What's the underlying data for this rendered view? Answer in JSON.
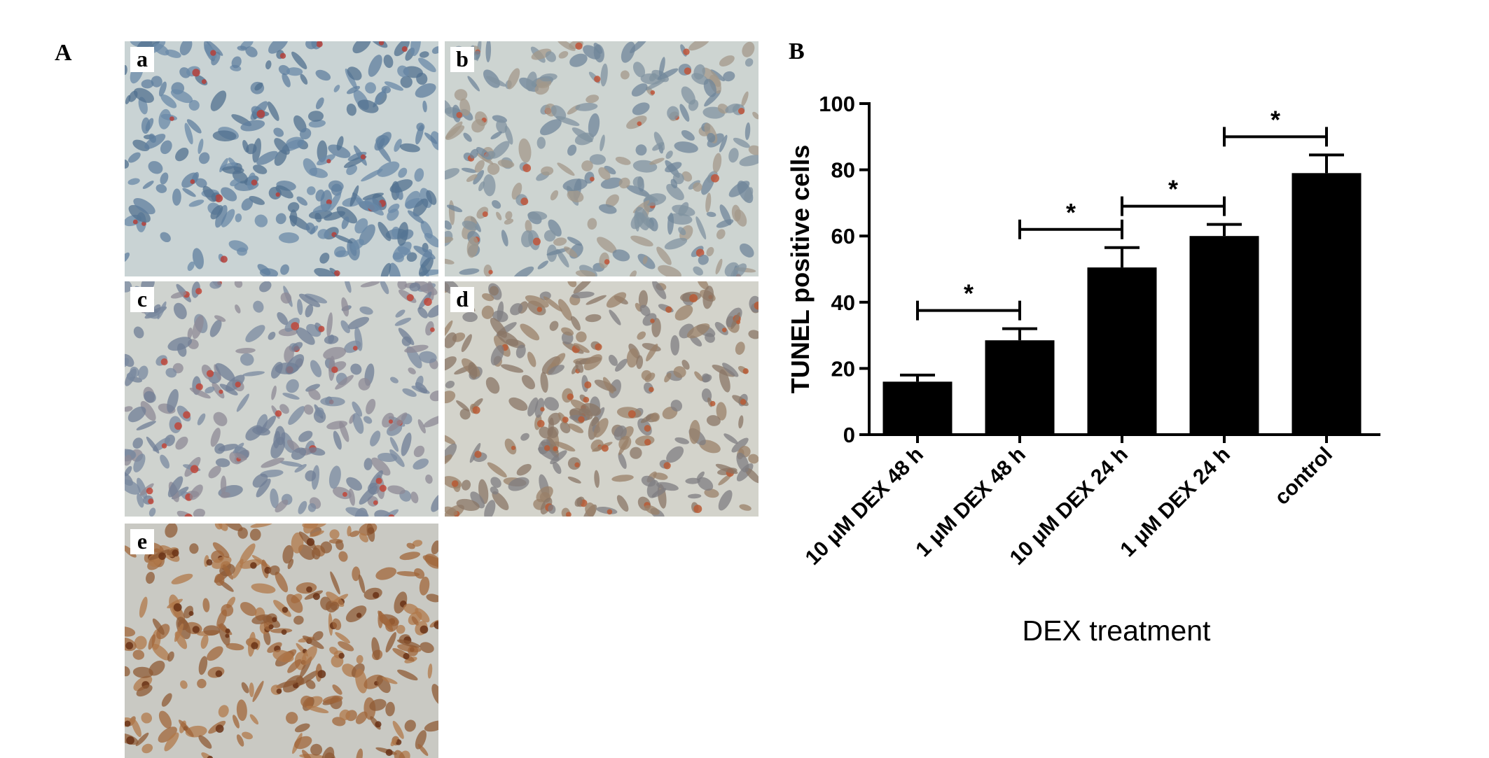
{
  "figure": {
    "panel_labels": [
      "A",
      "B"
    ],
    "micrographs": [
      {
        "label": "a"
      },
      {
        "label": "b"
      },
      {
        "label": "c"
      },
      {
        "label": "d"
      },
      {
        "label": "e"
      }
    ]
  },
  "chart_data": {
    "type": "bar",
    "ylabel": "TUNEL positive cells",
    "xlabel": "DEX treatment",
    "categories": [
      "10 μM DEX 48 h",
      "1 μM DEX 48 h",
      "10 μM DEX 24 h",
      "1 μM DEX 24 h",
      "control"
    ],
    "values": [
      16,
      28.5,
      50.5,
      60,
      79
    ],
    "errors": [
      2,
      3.5,
      6,
      3.5,
      5.5
    ],
    "color": "#000000",
    "ylim": [
      0,
      100
    ],
    "yticks": [
      0,
      20,
      40,
      60,
      80,
      100
    ],
    "annotations": [
      {
        "label": "*",
        "between": [
          0,
          1
        ]
      },
      {
        "label": "*",
        "between": [
          1,
          2
        ]
      },
      {
        "label": "*",
        "between": [
          2,
          3
        ]
      },
      {
        "label": "*",
        "between": [
          3,
          4
        ]
      }
    ]
  }
}
